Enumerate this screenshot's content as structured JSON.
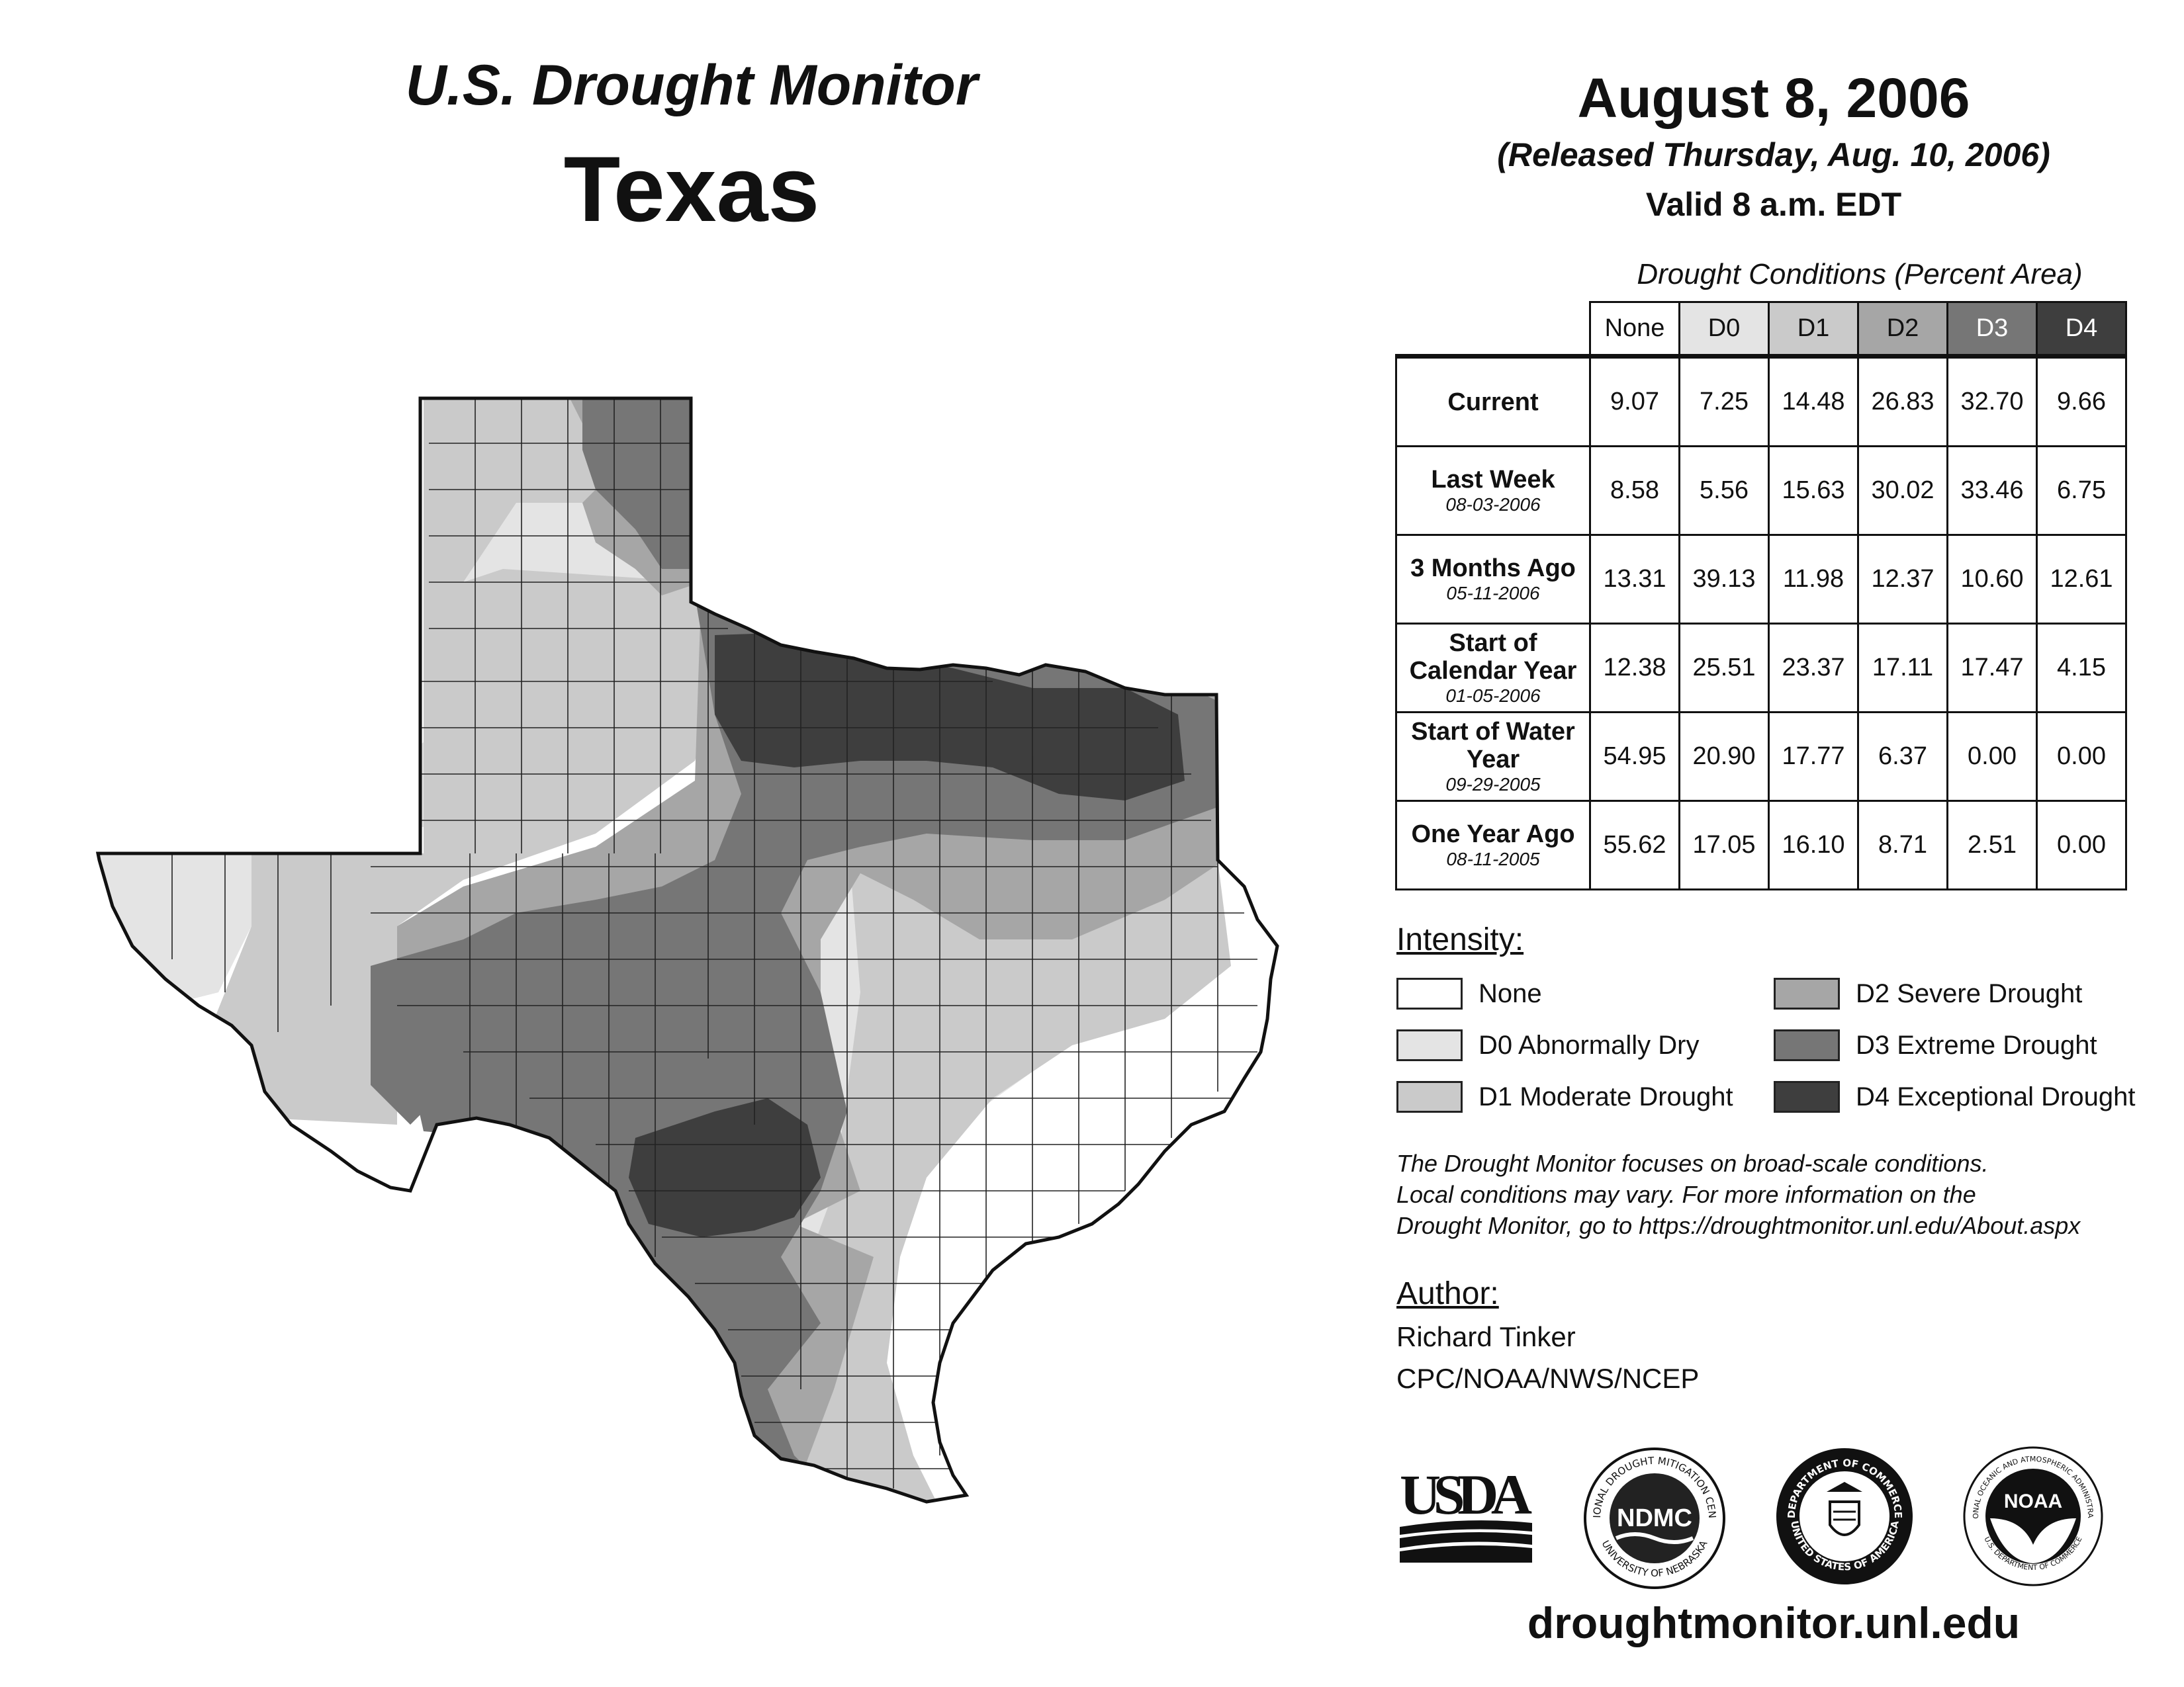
{
  "header": {
    "title": "U.S. Drought Monitor",
    "state": "Texas",
    "date": "August 8, 2006",
    "released": "(Released Thursday, Aug. 10, 2006)",
    "valid": "Valid 8 a.m. EDT"
  },
  "table": {
    "caption": "Drought Conditions (Percent Area)",
    "columns": [
      "None",
      "D0",
      "D1",
      "D2",
      "D3",
      "D4"
    ],
    "rows": [
      {
        "label": "Current",
        "sublabel": "",
        "values": [
          "9.07",
          "7.25",
          "14.48",
          "26.83",
          "32.70",
          "9.66"
        ]
      },
      {
        "label": "Last Week",
        "sublabel": "08-03-2006",
        "values": [
          "8.58",
          "5.56",
          "15.63",
          "30.02",
          "33.46",
          "6.75"
        ]
      },
      {
        "label": "3 Months Ago",
        "sublabel": "05-11-2006",
        "values": [
          "13.31",
          "39.13",
          "11.98",
          "12.37",
          "10.60",
          "12.61"
        ]
      },
      {
        "label": "Start of Calendar Year",
        "sublabel": "01-05-2006",
        "values": [
          "12.38",
          "25.51",
          "23.37",
          "17.11",
          "17.47",
          "4.15"
        ]
      },
      {
        "label": "Start of Water Year",
        "sublabel": "09-29-2005",
        "values": [
          "54.95",
          "20.90",
          "17.77",
          "6.37",
          "0.00",
          "0.00"
        ]
      },
      {
        "label": "One Year Ago",
        "sublabel": "08-11-2005",
        "values": [
          "55.62",
          "17.05",
          "16.10",
          "8.71",
          "2.51",
          "0.00"
        ]
      }
    ]
  },
  "legend": {
    "title": "Intensity:",
    "items": [
      {
        "label": "None",
        "color": "#ffffff"
      },
      {
        "label": "D0 Abnormally Dry",
        "color": "#e4e4e4"
      },
      {
        "label": "D1 Moderate Drought",
        "color": "#cacaca"
      },
      {
        "label": "D2 Severe Drought",
        "color": "#a6a6a6"
      },
      {
        "label": "D3 Extreme Drought",
        "color": "#767676"
      },
      {
        "label": "D4 Exceptional Drought",
        "color": "#3e3e3e"
      }
    ]
  },
  "note": {
    "line1": "The Drought Monitor focuses on broad-scale conditions.",
    "line2": "Local conditions may vary. For more information on the",
    "line3": "Drought Monitor, go to https://droughtmonitor.unl.edu/About.aspx"
  },
  "author": {
    "title": "Author:",
    "name": "Richard Tinker",
    "org": "CPC/NOAA/NWS/NCEP"
  },
  "logos": {
    "usda": "USDA",
    "ndmc": "NDMC",
    "ndmc_ring_top": "NATIONAL DROUGHT MITIGATION CENTER",
    "ndmc_ring_bottom": "UNIVERSITY OF NEBRASKA",
    "doc_ring_top": "DEPARTMENT OF COMMERCE",
    "doc_ring_bottom": "UNITED STATES OF AMERICA",
    "noaa": "NOAA",
    "noaa_ring": "NATIONAL OCEANIC AND ATMOSPHERIC ADMINISTRATION",
    "noaa_ring_bottom": "U.S. DEPARTMENT OF COMMERCE"
  },
  "url": "droughtmonitor.unl.edu",
  "map_colors": {
    "none": "#ffffff",
    "d0": "#e4e4e4",
    "d1": "#cacaca",
    "d2": "#a6a6a6",
    "d3": "#767676",
    "d4": "#3e3e3e",
    "border": "#111111"
  }
}
